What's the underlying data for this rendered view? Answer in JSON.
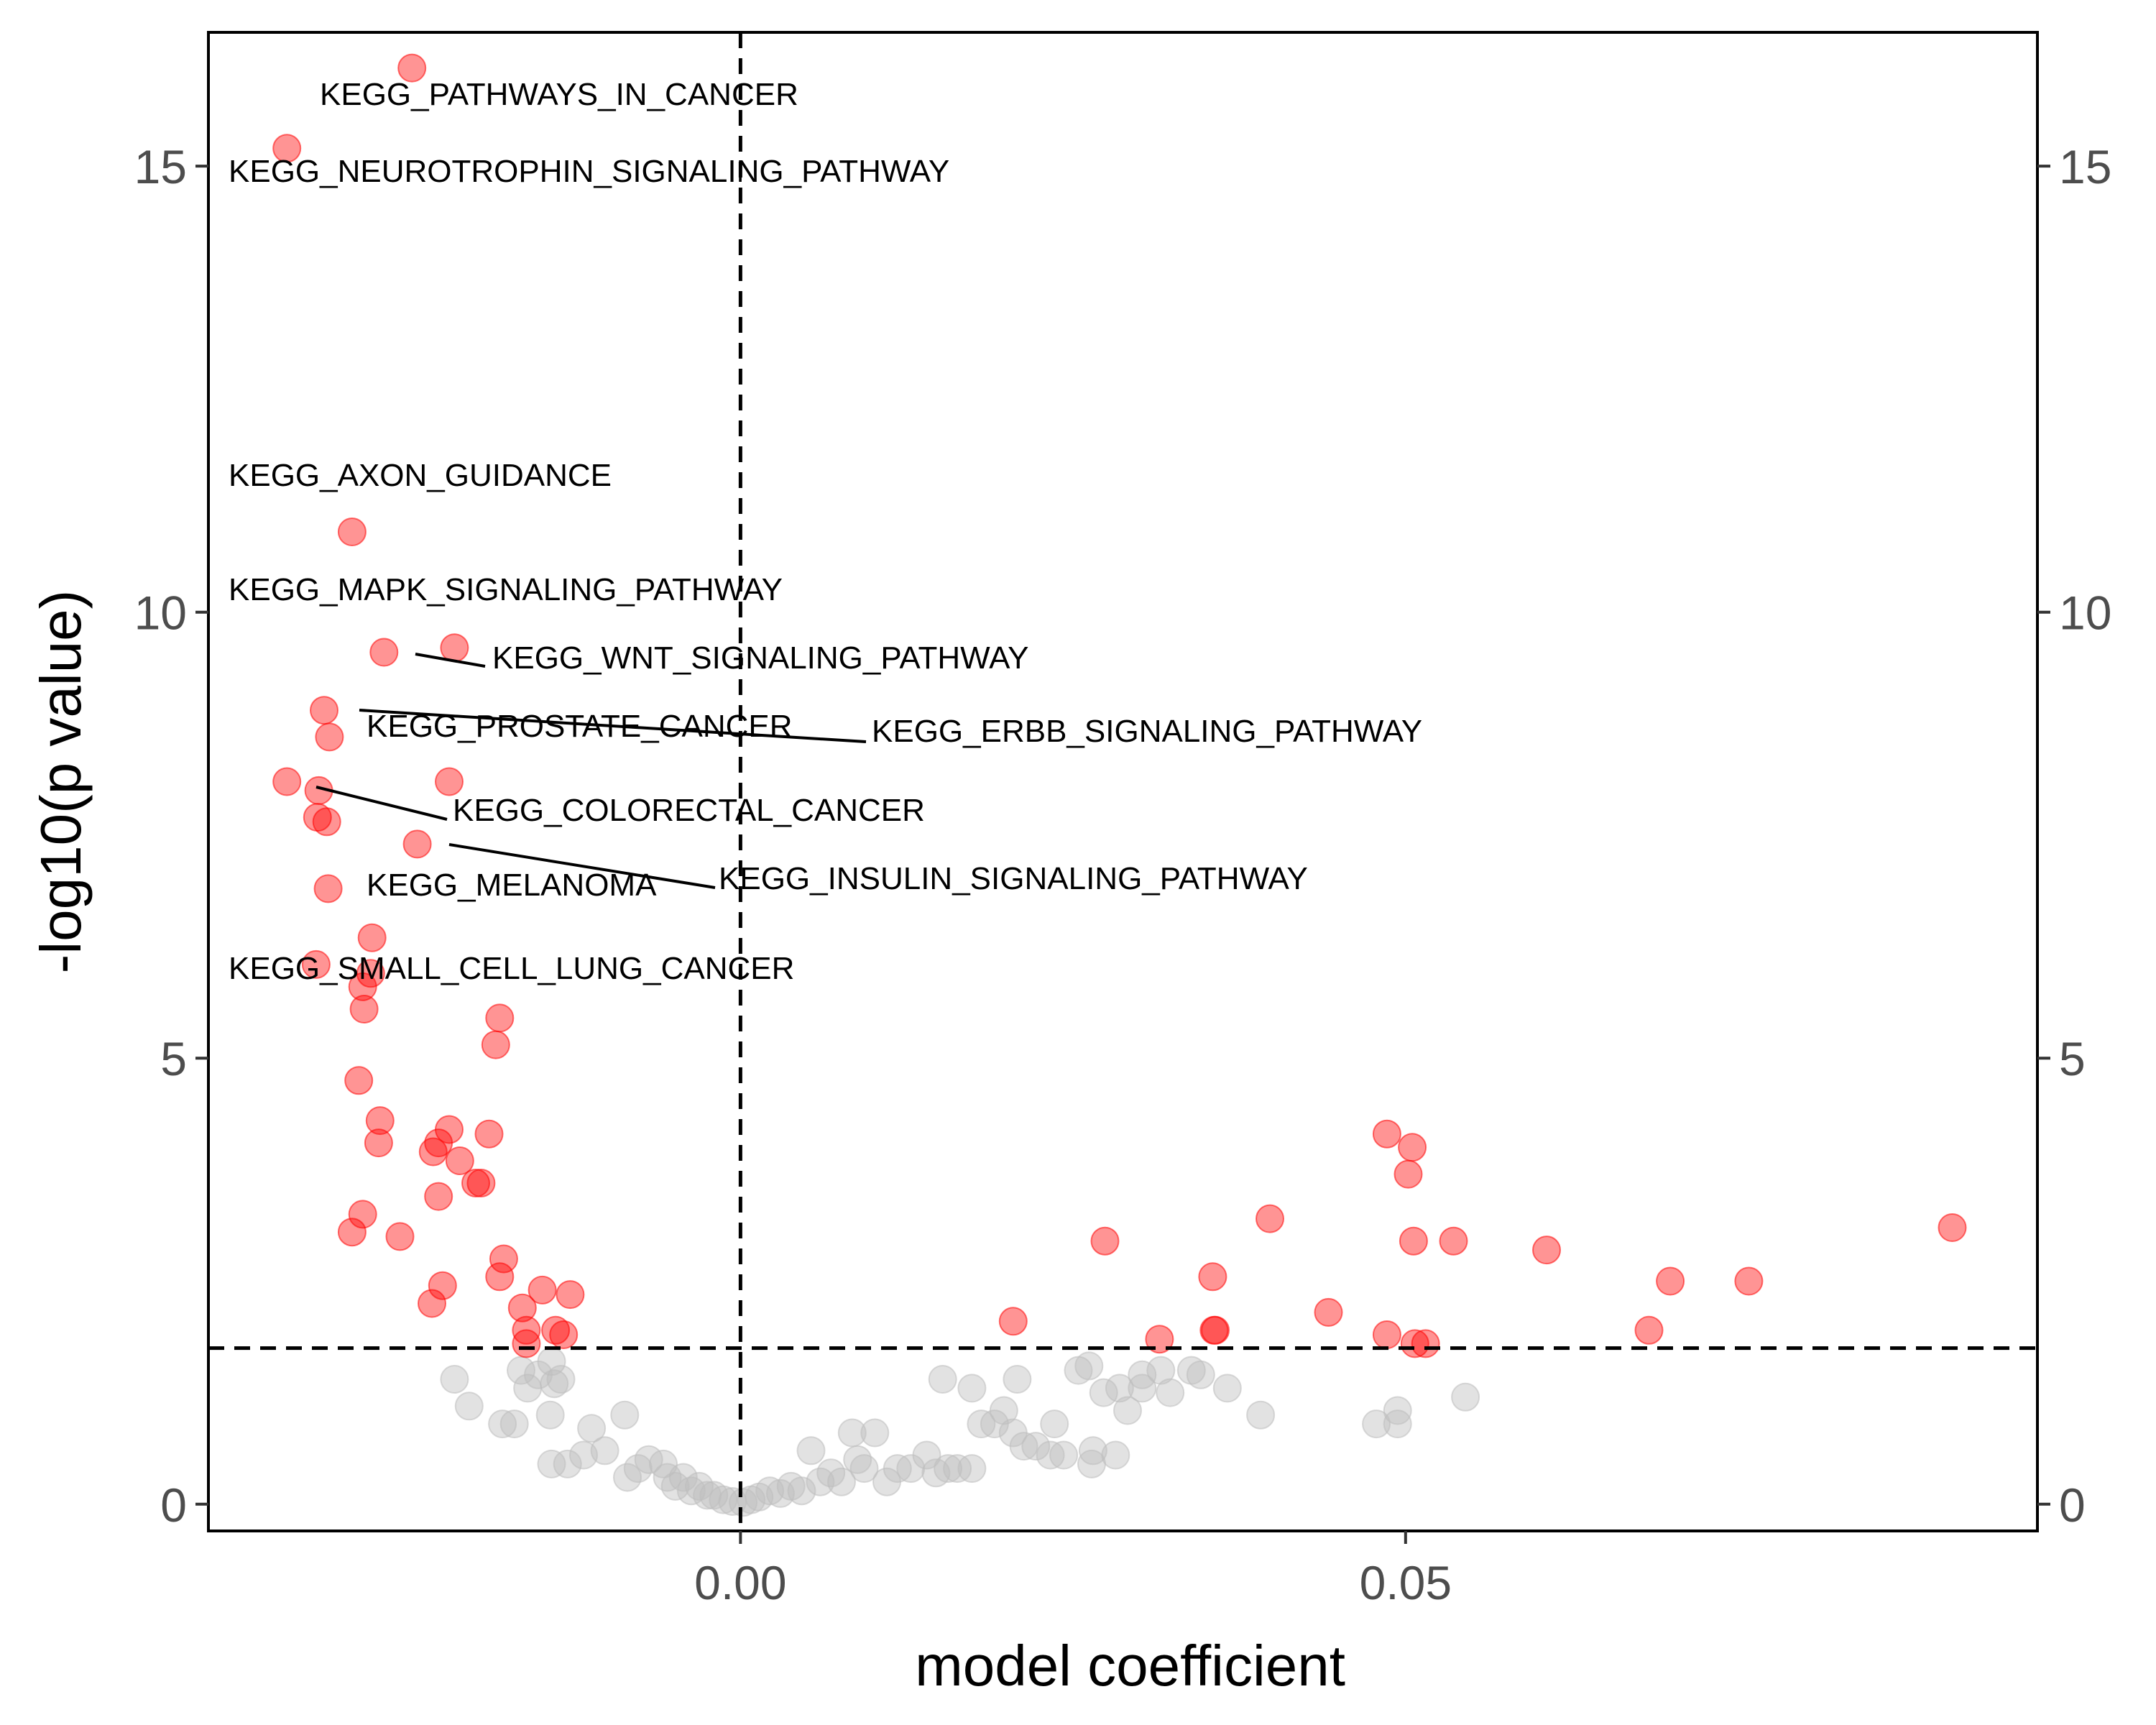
{
  "chart_data": {
    "type": "scatter",
    "xlabel": "model coefficient",
    "ylabel": "-log10(p value)",
    "xlim": [
      -0.04,
      0.0975
    ],
    "ylim": [
      -0.3,
      16.5
    ],
    "x_ticks": [
      {
        "value": 0.0,
        "label": "0.00"
      },
      {
        "value": 0.05,
        "label": "0.05"
      }
    ],
    "y_ticks": [
      {
        "value": 0,
        "label": "0"
      },
      {
        "value": 5,
        "label": "5"
      },
      {
        "value": 10,
        "label": "10"
      },
      {
        "value": 15,
        "label": "15"
      }
    ],
    "secondary_y_axis": true,
    "reference_lines": {
      "vertical_x": 0.0,
      "horizontal_y": 1.75,
      "style": "dashed"
    },
    "colors": {
      "significant": "#ff0000",
      "nonsignificant": "#bebebe",
      "significant_opacity": 0.42,
      "nonsignificant_opacity": 0.45
    },
    "grid": false,
    "legend": "none",
    "series": [
      {
        "group": "significant",
        "points": [
          [
            -0.0247,
            16.1
          ],
          [
            -0.0341,
            15.2
          ],
          [
            -0.0292,
            10.9
          ],
          [
            -0.0268,
            9.55
          ],
          [
            -0.0215,
            9.6
          ],
          [
            -0.0313,
            8.9
          ],
          [
            -0.0309,
            8.6
          ],
          [
            -0.0341,
            8.1
          ],
          [
            -0.0317,
            8.0
          ],
          [
            -0.0219,
            8.1
          ],
          [
            -0.0318,
            7.7
          ],
          [
            -0.0311,
            7.65
          ],
          [
            -0.0243,
            7.4
          ],
          [
            -0.031,
            6.9
          ],
          [
            -0.0277,
            6.35
          ],
          [
            -0.0319,
            6.05
          ],
          [
            -0.0278,
            5.95
          ],
          [
            -0.0284,
            5.8
          ],
          [
            -0.0283,
            5.55
          ],
          [
            -0.0181,
            5.45
          ],
          [
            -0.0184,
            5.15
          ],
          [
            -0.0287,
            4.75
          ],
          [
            -0.0271,
            4.3
          ],
          [
            -0.0272,
            4.05
          ],
          [
            -0.0219,
            4.2
          ],
          [
            -0.0189,
            4.15
          ],
          [
            -0.0227,
            4.05
          ],
          [
            -0.0231,
            3.95
          ],
          [
            -0.0211,
            3.85
          ],
          [
            -0.0199,
            3.6
          ],
          [
            -0.0195,
            3.6
          ],
          [
            -0.0284,
            3.25
          ],
          [
            -0.0292,
            3.05
          ],
          [
            -0.0256,
            3.0
          ],
          [
            -0.0227,
            3.45
          ],
          [
            -0.0178,
            2.75
          ],
          [
            -0.0181,
            2.55
          ],
          [
            -0.0224,
            2.45
          ],
          [
            -0.0232,
            2.25
          ],
          [
            -0.0149,
            2.4
          ],
          [
            -0.0128,
            2.35
          ],
          [
            -0.0164,
            2.2
          ],
          [
            -0.0161,
            1.95
          ],
          [
            -0.0139,
            1.95
          ],
          [
            -0.0133,
            1.9
          ],
          [
            -0.0161,
            1.8
          ],
          [
            0.0205,
            2.05
          ],
          [
            0.0274,
            2.95
          ],
          [
            0.0315,
            1.85
          ],
          [
            0.0355,
            2.55
          ],
          [
            0.0356,
            1.95
          ],
          [
            0.0357,
            1.95
          ],
          [
            0.0398,
            3.2
          ],
          [
            0.0442,
            2.15
          ],
          [
            0.0486,
            4.15
          ],
          [
            0.0505,
            4.0
          ],
          [
            0.0502,
            3.7
          ],
          [
            0.0506,
            2.95
          ],
          [
            0.0536,
            2.95
          ],
          [
            0.0486,
            1.9
          ],
          [
            0.0507,
            1.8
          ],
          [
            0.0515,
            1.8
          ],
          [
            0.0606,
            2.85
          ],
          [
            0.0683,
            1.95
          ],
          [
            0.0699,
            2.5
          ],
          [
            0.0758,
            2.5
          ],
          [
            0.0911,
            3.1
          ]
        ]
      },
      {
        "group": "nonsignificant",
        "points": [
          [
            -0.0215,
            1.4
          ],
          [
            -0.0204,
            1.1
          ],
          [
            -0.0179,
            0.9
          ],
          [
            -0.017,
            0.9
          ],
          [
            -0.0165,
            1.5
          ],
          [
            -0.016,
            1.3
          ],
          [
            -0.0152,
            1.45
          ],
          [
            -0.0142,
            1.6
          ],
          [
            -0.014,
            1.35
          ],
          [
            -0.0135,
            1.4
          ],
          [
            -0.0143,
            1.0
          ],
          [
            -0.0142,
            0.45
          ],
          [
            -0.013,
            0.45
          ],
          [
            -0.0118,
            0.55
          ],
          [
            -0.0112,
            0.85
          ],
          [
            -0.0102,
            0.6
          ],
          [
            -0.0087,
            1.0
          ],
          [
            -0.0085,
            0.3
          ],
          [
            -0.0077,
            0.4
          ],
          [
            -0.0069,
            0.5
          ],
          [
            -0.0058,
            0.45
          ],
          [
            -0.0055,
            0.3
          ],
          [
            -0.0049,
            0.2
          ],
          [
            -0.0043,
            0.3
          ],
          [
            -0.0037,
            0.15
          ],
          [
            -0.0031,
            0.2
          ],
          [
            -0.0025,
            0.1
          ],
          [
            -0.002,
            0.1
          ],
          [
            -0.0013,
            0.05
          ],
          [
            -0.0006,
            0.03
          ],
          [
            0.0002,
            0.02
          ],
          [
            0.0008,
            0.05
          ],
          [
            0.0014,
            0.08
          ],
          [
            0.0022,
            0.15
          ],
          [
            0.003,
            0.12
          ],
          [
            0.0038,
            0.2
          ],
          [
            0.0046,
            0.15
          ],
          [
            0.0053,
            0.6
          ],
          [
            0.006,
            0.25
          ],
          [
            0.0068,
            0.35
          ],
          [
            0.0076,
            0.25
          ],
          [
            0.0084,
            0.8
          ],
          [
            0.0088,
            0.5
          ],
          [
            0.0093,
            0.4
          ],
          [
            0.0101,
            0.8
          ],
          [
            0.011,
            0.25
          ],
          [
            0.0118,
            0.4
          ],
          [
            0.0128,
            0.4
          ],
          [
            0.014,
            0.55
          ],
          [
            0.0147,
            0.35
          ],
          [
            0.0156,
            0.4
          ],
          [
            0.0163,
            0.4
          ],
          [
            0.0174,
            0.4
          ],
          [
            0.0152,
            1.4
          ],
          [
            0.0174,
            1.3
          ],
          [
            0.0181,
            0.9
          ],
          [
            0.0191,
            0.9
          ],
          [
            0.0198,
            1.05
          ],
          [
            0.0205,
            0.8
          ],
          [
            0.0213,
            0.65
          ],
          [
            0.0222,
            0.65
          ],
          [
            0.0233,
            0.55
          ],
          [
            0.0236,
            0.9
          ],
          [
            0.0243,
            0.55
          ],
          [
            0.0208,
            1.4
          ],
          [
            0.0254,
            1.5
          ],
          [
            0.0262,
            1.55
          ],
          [
            0.0273,
            1.25
          ],
          [
            0.0285,
            1.3
          ],
          [
            0.0291,
            1.05
          ],
          [
            0.0302,
            1.45
          ],
          [
            0.0282,
            0.55
          ],
          [
            0.0265,
            0.6
          ],
          [
            0.0264,
            0.45
          ],
          [
            0.0302,
            1.3
          ],
          [
            0.0316,
            1.5
          ],
          [
            0.0323,
            1.25
          ],
          [
            0.0339,
            1.5
          ],
          [
            0.0346,
            1.45
          ],
          [
            0.0366,
            1.3
          ],
          [
            0.0391,
            1.0
          ],
          [
            0.0478,
            0.9
          ],
          [
            0.0494,
            1.05
          ],
          [
            0.0494,
            0.9
          ],
          [
            0.0545,
            1.2
          ]
        ]
      }
    ],
    "annotations": [
      {
        "text": "KEGG_PATHWAYS_IN_CANCER"
      },
      {
        "text": "KEGG_NEUROTROPHIN_SIGNALING_PATHWAY"
      },
      {
        "text": "KEGG_AXON_GUIDANCE"
      },
      {
        "text": "KEGG_MAPK_SIGNALING_PATHWAY"
      },
      {
        "text": "KEGG_WNT_SIGNALING_PATHWAY"
      },
      {
        "text": "KEGG_PROSTATE_CANCER"
      },
      {
        "text": "KEGG_ERBB_SIGNALING_PATHWAY"
      },
      {
        "text": "KEGG_COLORECTAL_CANCER"
      },
      {
        "text": "KEGG_INSULIN_SIGNALING_PATHWAY"
      },
      {
        "text": "KEGG_MELANOMA"
      },
      {
        "text": "KEGG_SMALL_CELL_LUNG_CANCER"
      }
    ]
  }
}
